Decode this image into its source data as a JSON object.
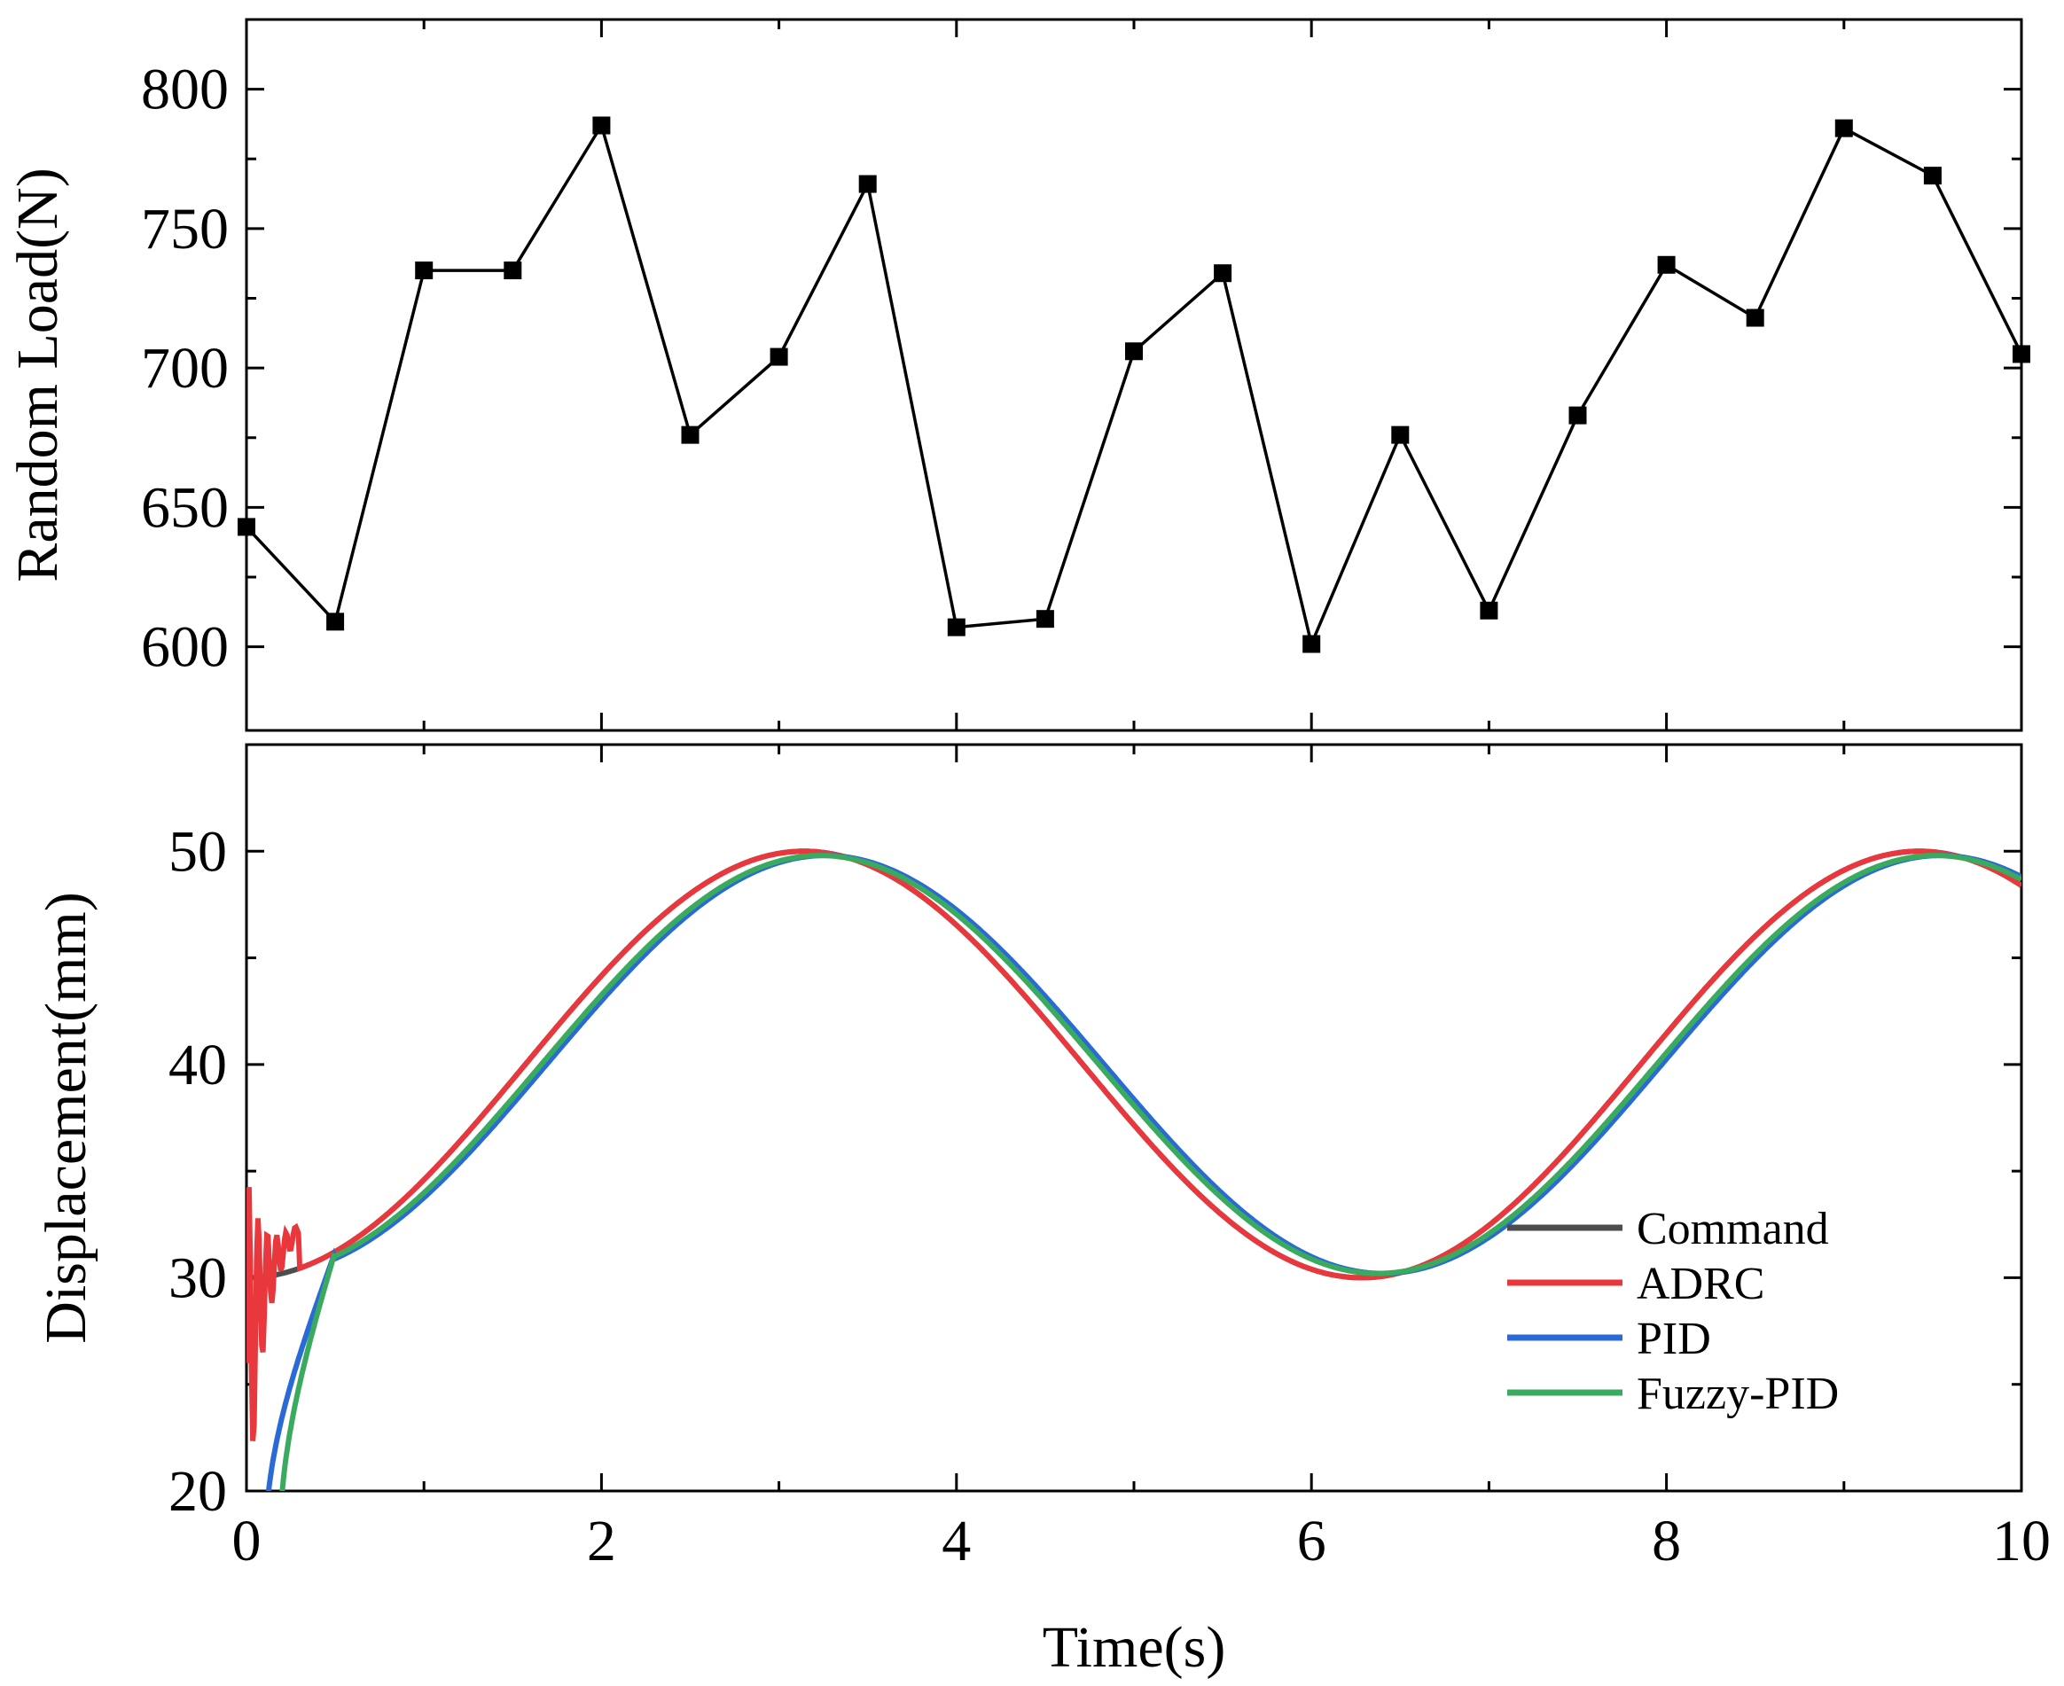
{
  "chart_data": [
    {
      "id": "load",
      "type": "line",
      "marker": "square",
      "ylabel": "Random Load(N)",
      "xlabel": "",
      "xlim": [
        0,
        10
      ],
      "ylim": [
        570,
        825
      ],
      "yticks": [
        600,
        650,
        700,
        750,
        800
      ],
      "yticklabels": [
        "600",
        "650",
        "700",
        "750",
        "800"
      ],
      "xticks": [
        0,
        2,
        4,
        6,
        8,
        10
      ],
      "color": "#000000",
      "x": [
        0,
        0.5,
        1,
        1.5,
        2,
        2.5,
        3,
        3.5,
        4,
        4.5,
        5,
        5.5,
        6,
        6.5,
        7,
        7.5,
        8,
        8.5,
        9,
        9.5,
        10
      ],
      "values": [
        643,
        609,
        735,
        735,
        787,
        676,
        704,
        766,
        607,
        610,
        706,
        734,
        601,
        676,
        613,
        683,
        737,
        718,
        786,
        769,
        705
      ]
    },
    {
      "id": "displacement",
      "type": "line",
      "ylabel": "Displacement(mm)",
      "xlabel": "Time(s)",
      "xlim": [
        0,
        10
      ],
      "ylim": [
        20,
        55
      ],
      "yticks": [
        20,
        30,
        40,
        50
      ],
      "yticklabels": [
        "20",
        "30",
        "40",
        "50"
      ],
      "xticks": [
        0,
        2,
        4,
        6,
        8,
        10
      ],
      "xticklabels": [
        "0",
        "2",
        "4",
        "6",
        "8",
        "10"
      ],
      "signal": {
        "offset": 40,
        "amplitude": 10,
        "period_s": 6.2832
      },
      "series": [
        {
          "name": "Command",
          "color": "#4d4d4d",
          "delay_s": 0,
          "amplitude_scale": 1.0
        },
        {
          "name": "ADRC",
          "color": "#e8383d",
          "delay_s": 0.0,
          "amplitude_scale": 1.0
        },
        {
          "name": "PID",
          "color": "#2a6ad6",
          "delay_s": 0.12,
          "amplitude_scale": 0.98
        },
        {
          "name": "Fuzzy-PID",
          "color": "#3aaa5e",
          "delay_s": 0.09,
          "amplitude_scale": 0.98
        }
      ]
    }
  ]
}
